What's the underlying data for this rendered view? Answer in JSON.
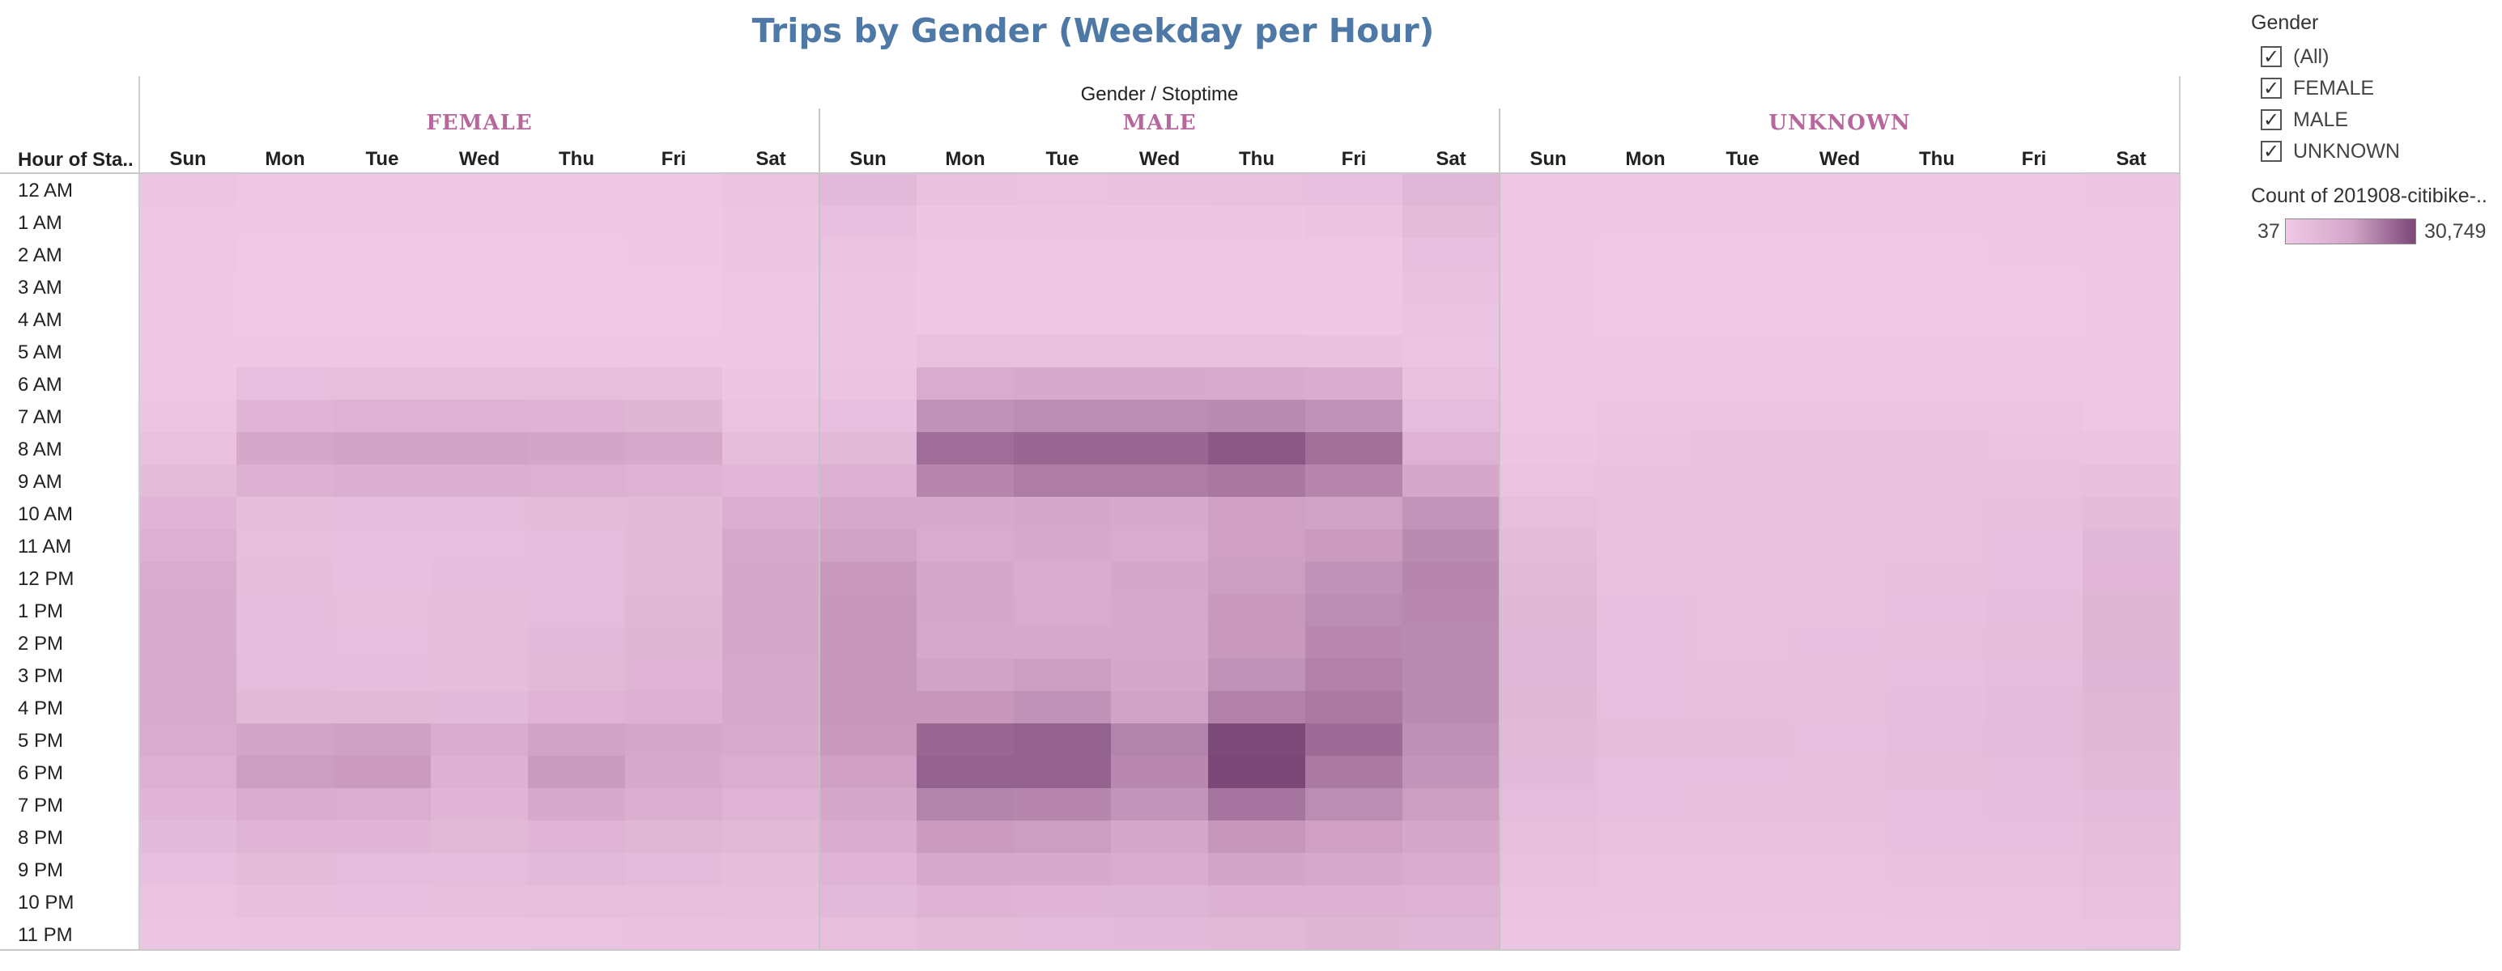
{
  "title": "Trips by Gender (Weekday  per Hour)",
  "chart_data": {
    "type": "heatmap",
    "title": "Trips by Gender (Weekday  per Hour)",
    "column_header": "Gender  /  Stoptime",
    "row_header": "Hour of Sta..",
    "groups": [
      "FEMALE",
      "MALE",
      "UNKNOWN"
    ],
    "days": [
      "Sun",
      "Mon",
      "Tue",
      "Wed",
      "Thu",
      "Fri",
      "Sat"
    ],
    "hours": [
      "12 AM",
      "1 AM",
      "2 AM",
      "3 AM",
      "4 AM",
      "5 AM",
      "6 AM",
      "7 AM",
      "8 AM",
      "9 AM",
      "10 AM",
      "11 AM",
      "12 PM",
      "1 PM",
      "2 PM",
      "3 PM",
      "4 PM",
      "5 PM",
      "6 PM",
      "7 PM",
      "8 PM",
      "9 PM",
      "10 PM",
      "11 PM"
    ],
    "value_label": "Count of 201908-citibike-..",
    "color_range": [
      37,
      30749
    ],
    "color_range_labels": [
      "37",
      "30,749"
    ],
    "values": {
      "FEMALE": [
        [
          1200,
          500,
          500,
          600,
          600,
          800,
          1800
        ],
        [
          800,
          200,
          200,
          300,
          300,
          400,
          1300
        ],
        [
          500,
          100,
          100,
          100,
          100,
          200,
          1000
        ],
        [
          300,
          100,
          100,
          100,
          100,
          150,
          700
        ],
        [
          200,
          100,
          100,
          100,
          100,
          150,
          500
        ],
        [
          300,
          600,
          600,
          600,
          600,
          500,
          400
        ],
        [
          600,
          3000,
          3200,
          3200,
          3100,
          2800,
          900
        ],
        [
          1200,
          6500,
          7000,
          7000,
          6800,
          6000,
          1800
        ],
        [
          2500,
          10500,
          11500,
          11500,
          11000,
          9500,
          3500
        ],
        [
          4200,
          7500,
          8000,
          8000,
          7800,
          7200,
          5800
        ],
        [
          6500,
          3800,
          4000,
          4000,
          4200,
          4600,
          8200
        ],
        [
          7800,
          3200,
          3300,
          3400,
          3700,
          4600,
          9800
        ],
        [
          8800,
          3500,
          3000,
          3600,
          4000,
          5000,
          10500
        ],
        [
          9400,
          3600,
          3100,
          3500,
          4000,
          5600,
          10500
        ],
        [
          9400,
          3700,
          3300,
          3500,
          4500,
          6000,
          10300
        ],
        [
          9400,
          4000,
          3600,
          3800,
          5000,
          6600,
          10000
        ],
        [
          9200,
          5000,
          5000,
          4500,
          6600,
          7400,
          9800
        ],
        [
          8800,
          11000,
          11800,
          8500,
          11500,
          10500,
          9200
        ],
        [
          7800,
          12500,
          13000,
          7500,
          13200,
          9500,
          8200
        ],
        [
          6200,
          8500,
          8200,
          6200,
          9500,
          8000,
          6400
        ],
        [
          4500,
          6500,
          6200,
          5000,
          6600,
          5600,
          5000
        ],
        [
          3000,
          4200,
          4000,
          3600,
          4800,
          4400,
          3800
        ],
        [
          2000,
          2800,
          3000,
          2900,
          3200,
          3200,
          2800
        ],
        [
          1400,
          1600,
          1600,
          1700,
          1900,
          2200,
          2200
        ]
      ],
      "MALE": [
        [
          4500,
          2100,
          2000,
          2200,
          2500,
          3000,
          5500
        ],
        [
          3000,
          1100,
          900,
          1000,
          1100,
          1500,
          4200
        ],
        [
          2000,
          500,
          500,
          500,
          600,
          800,
          3000
        ],
        [
          1400,
          300,
          300,
          300,
          400,
          500,
          2200
        ],
        [
          1000,
          300,
          300,
          300,
          300,
          400,
          1500
        ],
        [
          1000,
          2500,
          2600,
          2600,
          2500,
          2300,
          1400
        ],
        [
          1700,
          9000,
          9500,
          9500,
          9300,
          8500,
          2500
        ],
        [
          3000,
          15000,
          16000,
          16000,
          16500,
          15000,
          4000
        ],
        [
          5000,
          22500,
          24000,
          24000,
          27000,
          22000,
          7000
        ],
        [
          7500,
          17500,
          19500,
          19500,
          20500,
          17500,
          10500
        ],
        [
          10000,
          9500,
          10500,
          9500,
          12000,
          11500,
          14500
        ],
        [
          11500,
          9000,
          9500,
          8800,
          12000,
          13000,
          16500
        ],
        [
          13500,
          10500,
          8500,
          10500,
          12500,
          15000,
          17500
        ],
        [
          14000,
          10500,
          9000,
          10000,
          13500,
          16000,
          17000
        ],
        [
          14000,
          10000,
          10000,
          9500,
          13500,
          17000,
          16500
        ],
        [
          14000,
          11500,
          12500,
          10500,
          15000,
          18500,
          16500
        ],
        [
          14000,
          14000,
          15000,
          11500,
          18500,
          20000,
          16500
        ],
        [
          13500,
          24000,
          25000,
          18000,
          30000,
          23000,
          15500
        ],
        [
          12000,
          25000,
          25000,
          17000,
          30749,
          20000,
          14500
        ],
        [
          10500,
          18000,
          17500,
          14500,
          21000,
          16000,
          12500
        ],
        [
          8500,
          13000,
          12500,
          10500,
          14000,
          12000,
          10500
        ],
        [
          6500,
          10000,
          9500,
          8500,
          11000,
          10000,
          8500
        ],
        [
          4800,
          6800,
          6500,
          6300,
          7500,
          7500,
          7000
        ],
        [
          3200,
          4200,
          4300,
          4500,
          5000,
          6000,
          5500
        ]
      ],
      "UNKNOWN": [
        [
          800,
          400,
          400,
          400,
          400,
          500,
          1000
        ],
        [
          600,
          250,
          250,
          250,
          250,
          300,
          800
        ],
        [
          400,
          150,
          150,
          150,
          150,
          200,
          600
        ],
        [
          300,
          100,
          100,
          100,
          100,
          150,
          450
        ],
        [
          200,
          100,
          100,
          100,
          100,
          100,
          300
        ],
        [
          200,
          300,
          300,
          300,
          300,
          300,
          250
        ],
        [
          300,
          700,
          700,
          700,
          700,
          700,
          400
        ],
        [
          500,
          1300,
          1300,
          1300,
          1300,
          1300,
          800
        ],
        [
          900,
          2000,
          2100,
          2100,
          2100,
          2000,
          1600
        ],
        [
          1800,
          2200,
          2300,
          2300,
          2300,
          2400,
          2800
        ],
        [
          3200,
          2200,
          2300,
          2300,
          2400,
          2800,
          4200
        ],
        [
          4200,
          2300,
          2300,
          2400,
          2600,
          3000,
          5200
        ],
        [
          5000,
          2600,
          2500,
          2600,
          2900,
          3400,
          5800
        ],
        [
          5400,
          2700,
          2500,
          2600,
          3000,
          3600,
          6000
        ],
        [
          5500,
          2700,
          2600,
          2700,
          3100,
          3800,
          6000
        ],
        [
          5500,
          3000,
          2900,
          2900,
          3300,
          4000,
          5900
        ],
        [
          5400,
          3300,
          3200,
          3100,
          3600,
          4300,
          5700
        ],
        [
          5000,
          3500,
          3500,
          3300,
          3900,
          4300,
          5400
        ],
        [
          4500,
          3400,
          3400,
          3200,
          3800,
          4100,
          5000
        ],
        [
          3900,
          3000,
          2900,
          2800,
          3300,
          3600,
          4400
        ],
        [
          3200,
          2500,
          2400,
          2400,
          2700,
          3000,
          3800
        ],
        [
          2500,
          2000,
          2000,
          2000,
          2200,
          2500,
          3200
        ],
        [
          1800,
          1500,
          1500,
          1500,
          1700,
          2000,
          2600
        ],
        [
          1300,
          1000,
          1000,
          1100,
          1200,
          1500,
          2000
        ]
      ]
    }
  },
  "legend": {
    "filter_title": "Gender",
    "filters": [
      {
        "label": "(All)",
        "check": "✓"
      },
      {
        "label": "FEMALE",
        "check": "✓"
      },
      {
        "label": "MALE",
        "check": "✓"
      },
      {
        "label": "UNKNOWN",
        "check": "✓"
      }
    ],
    "color_title": "Count of 201908-citibike-..",
    "color_min": "37",
    "color_max": "30,749",
    "colors": {
      "low": "#efc9e6",
      "mid": "#d4a6c8",
      "high": "#7a4777",
      "group_label": "#b8679c",
      "title": "#4e79a7"
    }
  }
}
